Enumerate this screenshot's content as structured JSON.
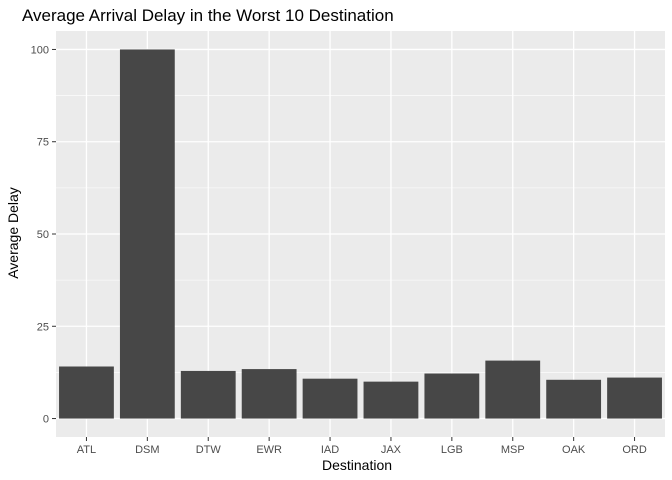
{
  "chart_data": {
    "type": "bar",
    "title": "Average Arrival Delay in the Worst 10 Destination",
    "xlabel": "Destination",
    "ylabel": "Average Delay",
    "categories": [
      "ATL",
      "DSM",
      "DTW",
      "EWR",
      "IAD",
      "JAX",
      "LGB",
      "MSP",
      "OAK",
      "ORD"
    ],
    "values": [
      14.1,
      100.0,
      12.9,
      13.4,
      10.8,
      10.0,
      12.2,
      15.7,
      10.5,
      11.1
    ],
    "ylim": [
      -5,
      105
    ],
    "yticks": [
      0,
      25,
      50,
      75,
      100
    ],
    "grid": true,
    "legend": "none",
    "colors": {
      "panel": "#EBEBEB",
      "grid_major": "#FFFFFF",
      "bar": "#474747",
      "tick_text": "#4D4D4D",
      "axis_tick": "#333333",
      "text": "#000000"
    }
  }
}
